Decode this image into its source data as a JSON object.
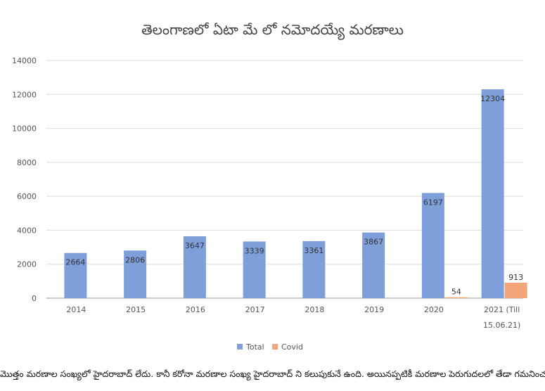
{
  "chart_data": {
    "type": "bar",
    "title": "తెలంగాణలో ఏటా మే లో నమోదయ్యే మరణాలు",
    "categories": [
      "2014",
      "2015",
      "2016",
      "2017",
      "2018",
      "2019",
      "2020",
      "2021 (Till 15.06.21)"
    ],
    "series": [
      {
        "name": "Total",
        "color": "#7f9fda",
        "values": [
          2664,
          2806,
          3647,
          3339,
          3361,
          3867,
          6197,
          12304
        ]
      },
      {
        "name": "Covid",
        "color": "#f4a57a",
        "values": [
          null,
          null,
          null,
          null,
          null,
          null,
          54,
          913
        ]
      }
    ],
    "ylim": [
      0,
      14000
    ],
    "yticks": [
      0,
      2000,
      4000,
      6000,
      8000,
      10000,
      12000,
      14000
    ],
    "grid": true,
    "legend_position": "bottom"
  },
  "footnote": "మొత్తం మరణాల సంఖ్యలో హైదరాబాద్ లేదు. కానీ కరోనా మరణాల సంఖ్య హైదరాబాద్ ని కలుపుకునే ఉంది. అయినప్పటికీ మరణాల పెరుగుదలలో తేడా గమనించవచ్చు."
}
